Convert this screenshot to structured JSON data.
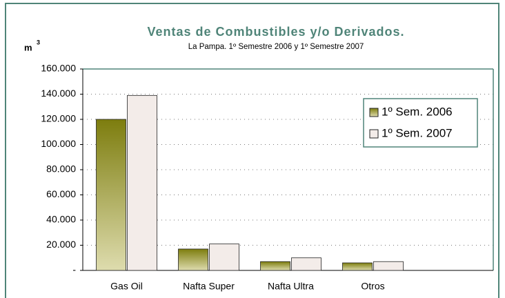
{
  "chart_data": {
    "type": "bar",
    "title": "Ventas de Combustibles y/o Derivados.",
    "subtitle": "La Pampa. 1º Semestre 2006  y 1º Semestre 2007",
    "ylabel": "m",
    "ylabel_sup": "3",
    "categories": [
      "Gas Oil",
      "Nafta Super",
      "Nafta Ultra",
      "Otros"
    ],
    "series": [
      {
        "name": "1º Sem. 2006",
        "color": "#7d7d0e",
        "values": [
          120000,
          17000,
          7000,
          6000
        ]
      },
      {
        "name": "1º Sem. 2007",
        "color": "#f3ece9",
        "values": [
          139000,
          21000,
          10000,
          7000
        ]
      }
    ],
    "ylim": [
      0,
      160000
    ],
    "yticks": [
      {
        "value": 0,
        "label": "-"
      },
      {
        "value": 20000,
        "label": "20.000"
      },
      {
        "value": 40000,
        "label": "40.000"
      },
      {
        "value": 60000,
        "label": "60.000"
      },
      {
        "value": 80000,
        "label": "80.000"
      },
      {
        "value": 100000,
        "label": "100.000"
      },
      {
        "value": 120000,
        "label": "120.000"
      },
      {
        "value": 140000,
        "label": "140.000"
      },
      {
        "value": 160000,
        "label": "160.000"
      }
    ],
    "grid": true,
    "legend": "upper right"
  }
}
